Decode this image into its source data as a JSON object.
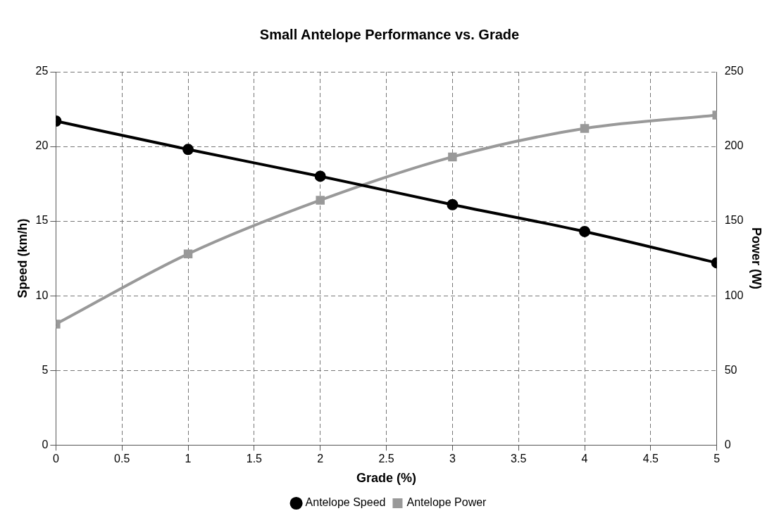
{
  "chart_data": {
    "type": "line",
    "title": "Small Antelope Performance vs. Grade",
    "xlabel": "Grade (%)",
    "ylabel": "Speed (km/h)",
    "y2label": "Power (W)",
    "x": [
      0,
      1,
      2,
      3,
      4,
      5
    ],
    "series": [
      {
        "name": "Antelope Speed",
        "color": "#000000",
        "values": [
          21.7,
          19.8,
          18.0,
          16.1,
          14.3,
          12.2
        ],
        "marker": "circle"
      },
      {
        "name": "Antelope Power",
        "color": "#999999",
        "values": [
          81,
          128,
          164,
          193,
          212,
          221
        ],
        "axis": "y2",
        "marker": "square"
      }
    ],
    "xlim": [
      0,
      5
    ],
    "xticks": [
      0,
      0.5,
      1,
      1.5,
      2,
      2.5,
      3,
      3.5,
      4,
      4.5,
      5
    ],
    "ylim": [
      0,
      25
    ],
    "yticks": [
      0,
      5,
      10,
      15,
      20,
      25
    ],
    "y2lim": [
      0,
      250
    ],
    "y2ticks": [
      0,
      50,
      100,
      150,
      200,
      250
    ],
    "grid": true,
    "line_style": "solid",
    "legend": "bottom"
  }
}
